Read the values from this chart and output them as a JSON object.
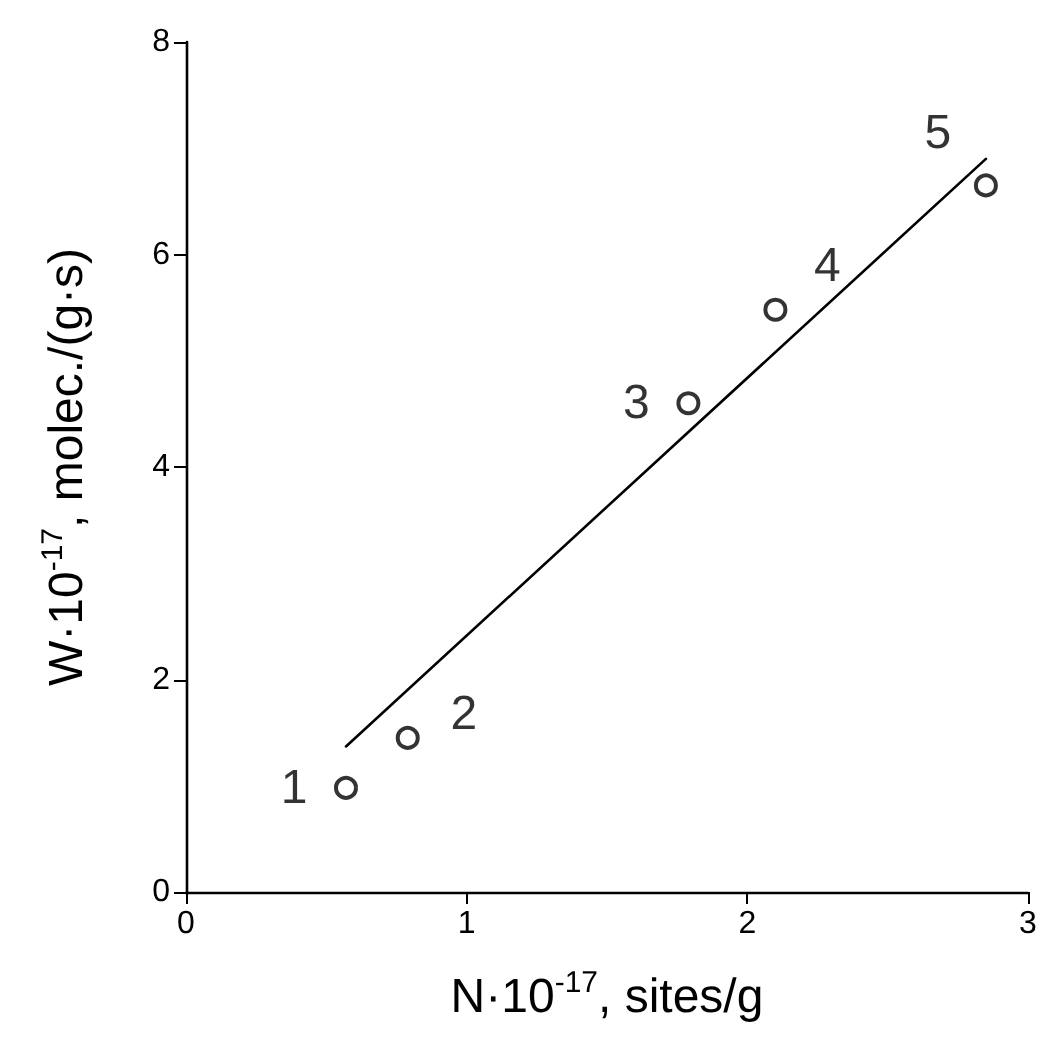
{
  "chart_data": {
    "type": "scatter",
    "xlabel": "N·10$^{-17}$, sites/g",
    "ylabel": "W·10$^{-17}$, molec./(g·s)",
    "xlim": [
      0,
      3
    ],
    "xticks": [
      0,
      1,
      2,
      3
    ],
    "ylim": [
      0,
      8
    ],
    "yticks": [
      0,
      2,
      4,
      6,
      8
    ],
    "grid": false,
    "marker": "circle",
    "series": [
      {
        "color": "#000000",
        "x": [
          0.57,
          0.79,
          1.79,
          2.1,
          2.85
        ],
        "values": [
          0.98,
          1.45,
          4.6,
          5.48,
          6.65
        ]
      },
      {
        "type": "line",
        "color": "#000000",
        "marker": "none",
        "line_style": "solid",
        "x": [
          0.57,
          2.85
        ],
        "values": [
          1.37,
          6.9
        ]
      }
    ],
    "annotations": [
      {
        "text": "1",
        "x": 0.57,
        "y": 0.98
      },
      {
        "text": "2",
        "x": 0.79,
        "y": 1.45
      },
      {
        "text": "3",
        "x": 1.79,
        "y": 4.6
      },
      {
        "text": "4",
        "x": 2.1,
        "y": 5.48
      },
      {
        "text": "5",
        "x": 2.85,
        "y": 6.65
      }
    ]
  }
}
